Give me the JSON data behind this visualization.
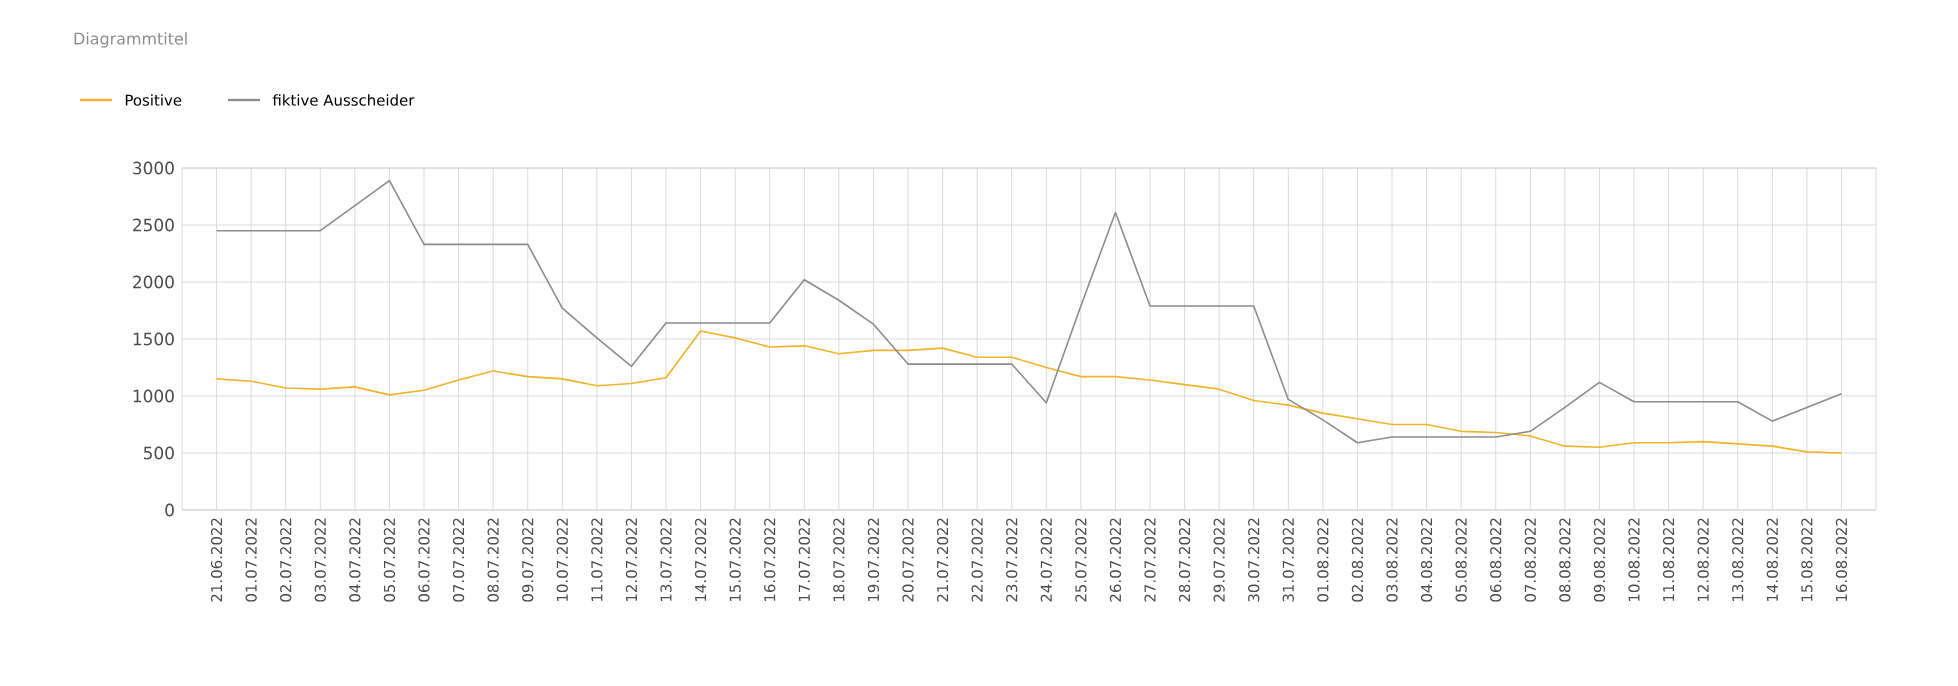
{
  "chart_data": {
    "type": "line",
    "title": "Diagrammtitel",
    "categories": [
      "21.06.2022",
      "01.07.2022",
      "02.07.2022",
      "03.07.2022",
      "04.07.2022",
      "05.07.2022",
      "06.07.2022",
      "07.07.2022",
      "08.07.2022",
      "09.07.2022",
      "10.07.2022",
      "11.07.2022",
      "12.07.2022",
      "13.07.2022",
      "14.07.2022",
      "15.07.2022",
      "16.07.2022",
      "17.07.2022",
      "18.07.2022",
      "19.07.2022",
      "20.07.2022",
      "21.07.2022",
      "22.07.2022",
      "23.07.2022",
      "24.07.2022",
      "25.07.2022",
      "26.07.2022",
      "27.07.2022",
      "28.07.2022",
      "29.07.2022",
      "30.07.2022",
      "31.07.2022",
      "01.08.2022",
      "02.08.2022",
      "03.08.2022",
      "04.08.2022",
      "05.08.2022",
      "06.08.2022",
      "07.08.2022",
      "08.08.2022",
      "09.08.2022",
      "10.08.2022",
      "11.08.2022",
      "12.08.2022",
      "13.08.2022",
      "14.08.2022",
      "15.08.2022",
      "16.08.2022"
    ],
    "series": [
      {
        "name": "Positive",
        "color": "#f0b42c",
        "values": [
          1150,
          1130,
          1070,
          1060,
          1080,
          1010,
          1050,
          1140,
          1220,
          1170,
          1150,
          1090,
          1110,
          1160,
          1570,
          1510,
          1430,
          1440,
          1370,
          1400,
          1400,
          1420,
          1340,
          1340,
          1250,
          1170,
          1170,
          1140,
          1100,
          1060,
          960,
          920,
          850,
          800,
          750,
          750,
          690,
          680,
          650,
          560,
          550,
          590,
          590,
          600,
          580,
          560,
          510,
          500
        ]
      },
      {
        "name": "fiktive  Ausscheider",
        "color": "#8c8c8c",
        "values": [
          2450,
          2450,
          2450,
          2450,
          2670,
          2890,
          2330,
          2330,
          2330,
          2330,
          1770,
          1510,
          1260,
          1640,
          1640,
          1640,
          1640,
          2020,
          1840,
          1630,
          1280,
          1280,
          1280,
          1280,
          940,
          1790,
          2610,
          1790,
          1790,
          1790,
          1790,
          970,
          790,
          590,
          640,
          640,
          640,
          640,
          690,
          900,
          1120,
          950,
          950,
          950,
          950,
          780,
          900,
          1020
        ]
      }
    ],
    "ylim": [
      0,
      3000
    ],
    "yticks": [
      0,
      500,
      1000,
      1500,
      2000,
      2500,
      3000
    ],
    "grid": true,
    "legend": "top left",
    "marker": "none",
    "line_style": "solid"
  }
}
